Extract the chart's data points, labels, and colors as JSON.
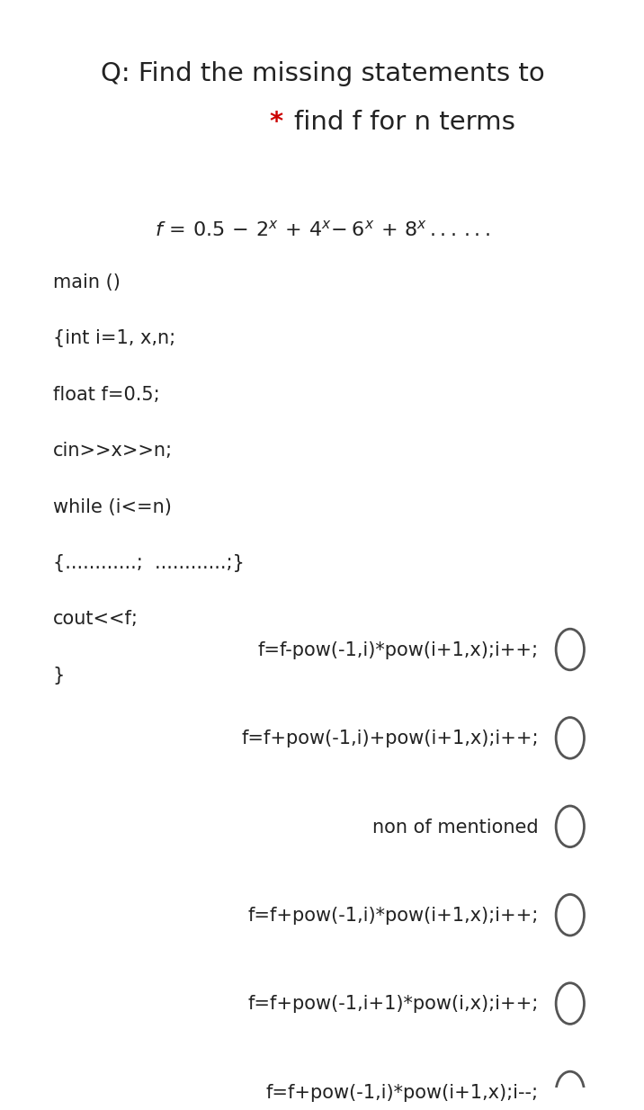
{
  "bg_color": "#ffffff",
  "title_line1": "Q: Find the missing statements to",
  "title_line2_star": "*",
  "title_line2_text": " find f for n terms",
  "title_fontsize": 21,
  "title_star_color": "#cc0000",
  "formula_fontsize": 16,
  "code_lines": [
    "main ()",
    "{int i=1, x,n;",
    "float f=0.5;",
    "cin>>x>>n;",
    "while (i<=n)",
    "{............;  ............;}",
    "cout<<f;",
    "}"
  ],
  "code_fontsize": 15,
  "options": [
    "f=f-pow(-1,i)*pow(i+1,x);i++;",
    "f=f+pow(-1,i)+pow(i+1,x);i++;",
    "non of mentioned",
    "f=f+pow(-1,i)*pow(i+1,x);i++;",
    "f=f+pow(-1,i+1)*pow(i,x);i++;",
    "f=f+pow(-1,i)*pow(i+1,x);i--;"
  ],
  "options_fontsize": 15,
  "circle_color": "#555555",
  "circle_linewidth": 2.0
}
